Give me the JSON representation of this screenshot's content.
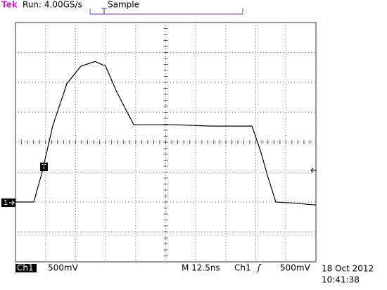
{
  "status": {
    "brand": "Tek",
    "run": "Run: 4.00GS/s",
    "mode": "Sample",
    "trigger_marker": "T"
  },
  "chart_data": {
    "type": "line",
    "color": "#000000",
    "x": [
      0,
      7.6,
      11.1,
      15.5,
      21.4,
      27.2,
      33.1,
      37.5,
      41.9,
      46.5,
      49.2,
      66.7,
      81.4,
      98.4,
      101.9,
      104.8,
      108.3,
      116.5,
      125
    ],
    "values": [
      0,
      0,
      0.5,
      1.27,
      1.98,
      2.27,
      2.35,
      2.27,
      1.86,
      1.5,
      1.29,
      1.29,
      1.27,
      1.27,
      0.86,
      0.45,
      0,
      -0.02,
      -0.05
    ],
    "xlim": [
      0,
      125
    ],
    "ylim": [
      -1,
      3
    ],
    "channel_marker": "1",
    "trigger_point": "T"
  },
  "footer": {
    "channel": "Ch1",
    "volts_div": "500mV",
    "time_div": "M 12.5ns",
    "trig_channel": "Ch1",
    "trig_slope": "ʃ",
    "trig_level": "500mV",
    "date": "18 Oct 2012",
    "time": "10:41:38"
  }
}
